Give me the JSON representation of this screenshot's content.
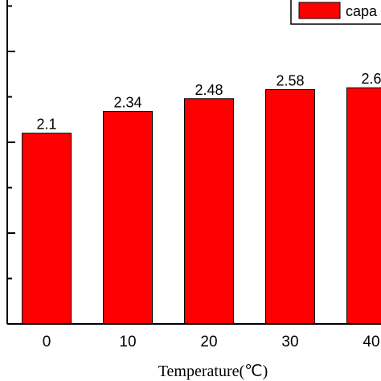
{
  "chart_data": {
    "type": "bar",
    "categories": [
      "0",
      "10",
      "20",
      "30",
      "40"
    ],
    "series": [
      {
        "name": "capa",
        "values": [
          2.1,
          2.34,
          2.48,
          2.58,
          2.6
        ]
      }
    ],
    "data_labels": [
      "2.1",
      "2.34",
      "2.48",
      "2.58",
      "2.6"
    ],
    "xlabel": "Temperature(℃)",
    "ylabel": "",
    "ylim": [
      0,
      3.5
    ],
    "legend": {
      "position": "top-right",
      "label": "capa"
    },
    "colors": {
      "bar": "#ff0000",
      "bar_edge": "#000000",
      "axis": "#000000"
    }
  }
}
